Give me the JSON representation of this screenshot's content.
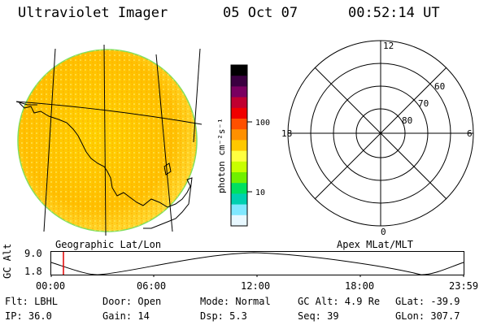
{
  "header": {
    "instrument": "Ultraviolet Imager",
    "date": "05 Oct 07",
    "time": "00:52:14 UT"
  },
  "colorbar": {
    "unit_label": "photon cm⁻²s⁻¹",
    "ticks": [
      "100",
      "10"
    ],
    "colors": [
      "#000000",
      "#3a0040",
      "#7a0060",
      "#c00030",
      "#f00000",
      "#ff5000",
      "#ff9000",
      "#ffc800",
      "#ffff40",
      "#c8ff00",
      "#70f000",
      "#00e060",
      "#00d0b0",
      "#80e8ff",
      "#e8f8ff"
    ]
  },
  "left_panel": {
    "caption": "Geographic Lat/Lon"
  },
  "polar_plot": {
    "caption": "Apex MLat/MLT",
    "mlt_labels": {
      "top": "12",
      "right": "6",
      "bottom": "0",
      "left": "18"
    },
    "lat_labels": [
      "60",
      "70",
      "80"
    ]
  },
  "orbit_plot": {
    "ylabel": "GC Alt",
    "yticks": [
      "9.0",
      "1.8"
    ],
    "xticks": [
      "00:00",
      "06:00",
      "12:00",
      "18:00",
      "23:59"
    ]
  },
  "status": {
    "row1": {
      "flt": "Flt: LBHL",
      "door": "Door: Open",
      "mode": "Mode: Normal",
      "gc_alt": "GC Alt: 4.9 Re",
      "glat": "GLat: -39.9"
    },
    "row2": {
      "ip": "IP: 36.0",
      "gain": "Gain: 14",
      "dsp": "Dsp:   5.3",
      "seq": "Seq: 39",
      "glon": "GLon: 307.7"
    }
  }
}
